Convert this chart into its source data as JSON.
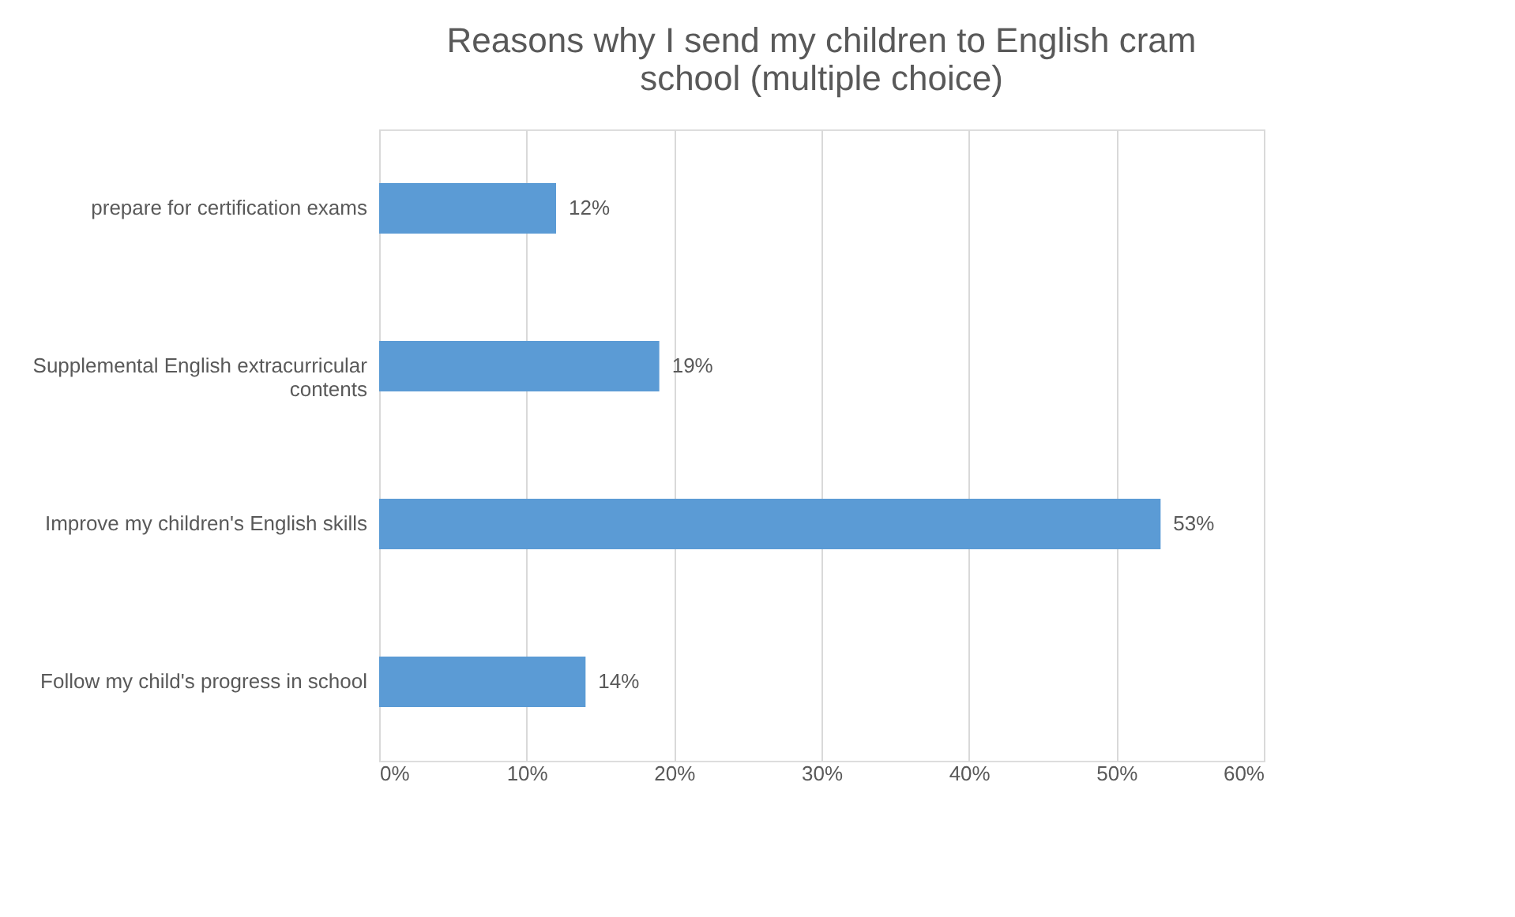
{
  "chart_data": {
    "type": "bar",
    "orientation": "horizontal",
    "title": "Reasons why I send my children to English cram school (multiple choice)",
    "categories": [
      "prepare for certification exams",
      "Supplemental English extracurricular contents",
      "Improve my children's English skills",
      "Follow my child's progress in school"
    ],
    "values": [
      12,
      19,
      53,
      14
    ],
    "value_labels": [
      "12%",
      "19%",
      "53%",
      "14%"
    ],
    "color": "#5b9bd5",
    "xlim": [
      0,
      60
    ],
    "xticks": [
      {
        "value": 0,
        "label": "0%"
      },
      {
        "value": 10,
        "label": "10%"
      },
      {
        "value": 20,
        "label": "20%"
      },
      {
        "value": 30,
        "label": "30%"
      },
      {
        "value": 40,
        "label": "40%"
      },
      {
        "value": 50,
        "label": "50%"
      },
      {
        "value": 60,
        "label": "60%"
      }
    ],
    "grid": "x"
  }
}
